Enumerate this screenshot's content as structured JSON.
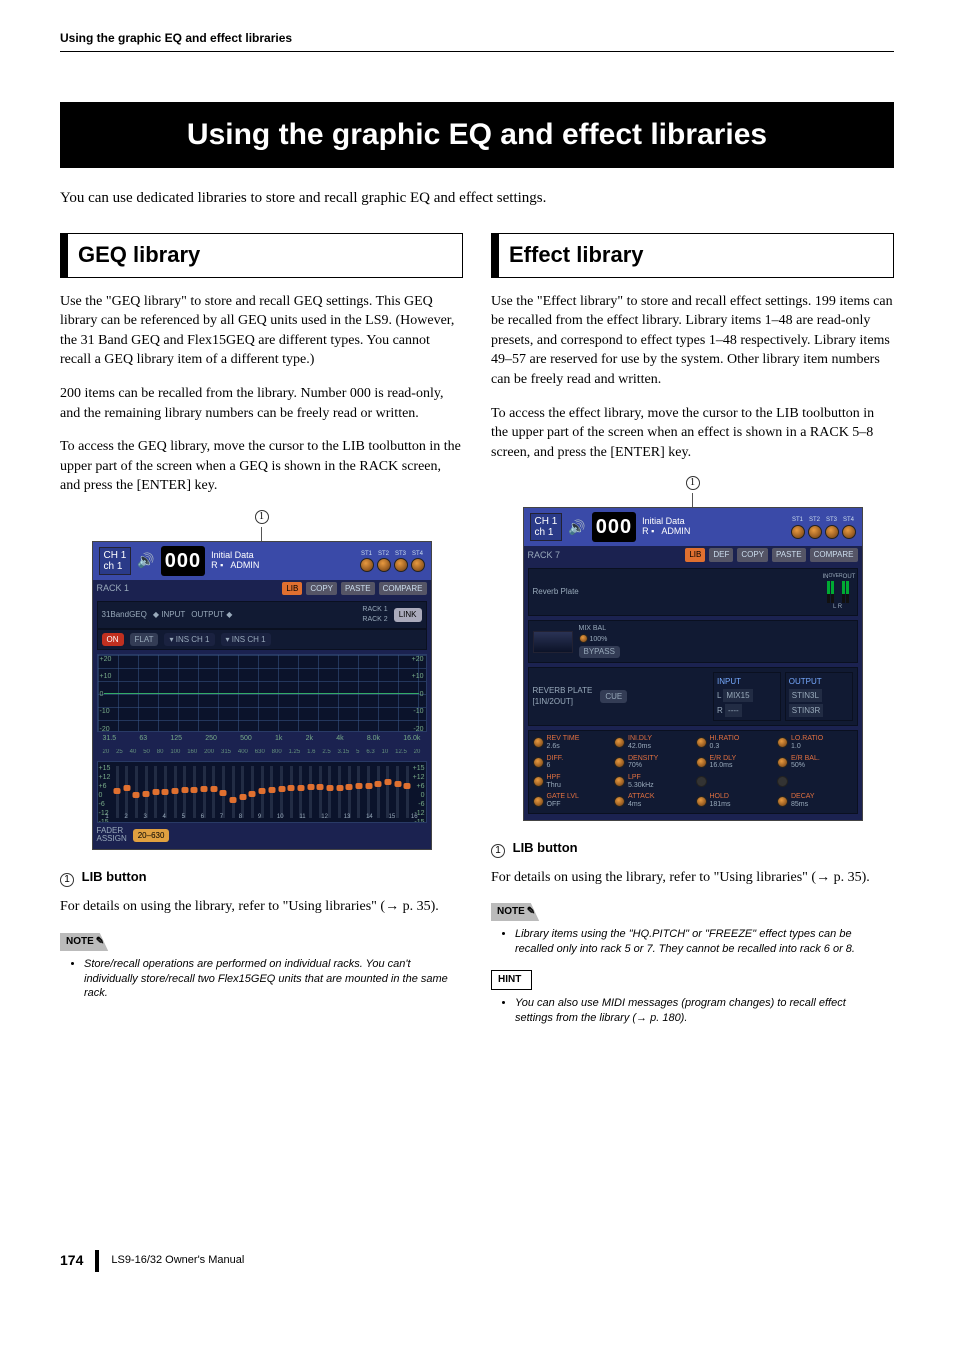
{
  "header": {
    "running_title": "Using the graphic EQ and effect libraries"
  },
  "main_title": "Using the graphic EQ and effect libraries",
  "intro": "You can use dedicated libraries to store and recall graphic EQ and effect settings.",
  "geq": {
    "title": "GEQ library",
    "p1": "Use the \"GEQ library\" to store and recall GEQ settings. This GEQ library can be referenced by all GEQ units used in the LS9. (However, the 31 Band GEQ and Flex15GEQ are different types. You cannot recall a GEQ library item of a different type.)",
    "p2": "200 items can be recalled from the library. Number 000 is read-only, and the remaining library numbers can be freely read or written.",
    "p3": "To access the GEQ library, move the cursor to the LIB toolbutton in the upper part of the screen when a GEQ is shown in the RACK screen, and press the [ENTER] key.",
    "callout_num": "1",
    "screenshot": {
      "ch_line1": "CH 1",
      "ch_line2": "ch 1",
      "digits": "000",
      "r_label": "R",
      "init_line1": "Initial Data",
      "init_line2": "ADMIN",
      "st_labels": [
        "ST1",
        "ST2",
        "ST3",
        "ST4"
      ],
      "rack_label": "RACK 1",
      "lib_btn": "LIB",
      "copy_btn": "COPY",
      "paste_btn": "PASTE",
      "compare_btn": "COMPARE",
      "mode": "31BandGEQ",
      "on": "ON",
      "flat": "FLAT",
      "input_lbl": "INPUT",
      "output_lbl": "OUTPUT",
      "ins_in": "INS CH 1",
      "ins_out": "INS CH 1",
      "rack_side": "RACK 1\nRACK 2",
      "link": "LINK",
      "y_ticks_left": [
        "+20",
        "+10",
        "0",
        "-10",
        "-20"
      ],
      "y_ticks_right": [
        "+20",
        "+10",
        "0",
        "-10",
        "-20"
      ],
      "freq_row1": [
        "31.5",
        "63",
        "125",
        "250",
        "500",
        "1k",
        "2k",
        "4k",
        "8.0k",
        "16.0k"
      ],
      "freq_row2": [
        "20",
        "25",
        "40",
        "50",
        "80",
        "100",
        "160",
        "200",
        "315",
        "400",
        "630",
        "800",
        "1.25",
        "1.6",
        "2.5",
        "3.15",
        "5",
        "6.3",
        "10",
        "12.5",
        "20"
      ],
      "slider_scale_left": [
        "+15",
        "+12",
        "+6",
        "0",
        "-6",
        "-12",
        "-15"
      ],
      "slider_nums": [
        "1",
        "2",
        "3",
        "4",
        "5",
        "6",
        "7",
        "8",
        "9",
        "10",
        "11",
        "12",
        "13",
        "14",
        "15",
        "16"
      ],
      "slider_positions_pct": [
        52,
        46,
        60,
        58,
        54,
        54,
        52,
        50,
        50,
        48,
        48,
        56,
        70,
        64,
        58,
        52,
        50,
        48,
        46,
        46,
        44,
        44,
        46,
        46,
        44,
        42,
        42,
        38,
        34,
        38,
        42
      ],
      "fader_assign": "FADER\nASSIGN",
      "range": "20–630"
    },
    "lib_heading_num": "1",
    "lib_heading_text": "LIB button",
    "p4a": "For details on using the library, refer to \"Using libraries\" (",
    "p4_arrow": "→",
    "p4b": " p. 35).",
    "note_label": "NOTE",
    "note_text": "Store/recall operations are performed on individual racks. You can't individually store/recall two Flex15GEQ units that are mounted in the same rack."
  },
  "fx": {
    "title": "Effect library",
    "p1": "Use the \"Effect library\" to store and recall effect settings. 199 items can be recalled from the effect library. Library items 1–48 are read-only presets, and correspond to effect types 1–48 respectively. Library items 49–57 are reserved for use by the system. Other library item numbers can be freely read and written.",
    "p2": "To access the effect library, move the cursor to the LIB toolbutton in the upper part of the screen when an effect is shown in a RACK 5–8 screen, and press the [ENTER] key.",
    "callout_num": "1",
    "screenshot": {
      "ch_line1": "CH 1",
      "ch_line2": "ch 1",
      "digits": "000",
      "r_label": "R",
      "init_line1": "Initial Data",
      "init_line2": "ADMIN",
      "st_labels": [
        "ST1",
        "ST2",
        "ST3",
        "ST4"
      ],
      "rack_label": "RACK 7",
      "lib_btn": "LIB",
      "def_btn": "DEF",
      "copy_btn": "COPY",
      "paste_btn": "PASTE",
      "compare_btn": "COMPARE",
      "fx_name": "Reverb Plate",
      "mixbal_lbl": "MIX BAL",
      "mixbal_val": "100%",
      "bypass": "BYPASS",
      "in_lbl": "IN",
      "out_lbl": "OUT",
      "over_lbl": "OVER",
      "meter_ticks": [
        "-6",
        "-12",
        "-18",
        "-30",
        "-60"
      ],
      "lr_lbl": "L R",
      "algo_line1": "REVERB PLATE",
      "algo_line2": "[1IN/2OUT]",
      "cue": "CUE",
      "input_lbl": "INPUT",
      "output_lbl": "OUTPUT",
      "in_l": "L",
      "in_r": "R",
      "in_l_val": "MIX15",
      "in_r_val": "----",
      "out_l_val": "STIN3L",
      "out_r_val": "STIN3R",
      "params": [
        {
          "name": "REV TIME",
          "val": "2.6s"
        },
        {
          "name": "INI.DLY",
          "val": "42.0ms"
        },
        {
          "name": "HI.RATIO",
          "val": "0.3"
        },
        {
          "name": "LO.RATIO",
          "val": "1.0"
        },
        {
          "name": "DIFF.",
          "val": "6"
        },
        {
          "name": "DENSITY",
          "val": "70%"
        },
        {
          "name": "E/R DLY",
          "val": "16.0ms"
        },
        {
          "name": "E/R BAL.",
          "val": "50%"
        },
        {
          "name": "HPF",
          "val": "Thru"
        },
        {
          "name": "LPF",
          "val": "5.30kHz"
        },
        {
          "name": "",
          "val": ""
        },
        {
          "name": "",
          "val": ""
        },
        {
          "name": "GATE LVL",
          "val": "OFF"
        },
        {
          "name": "ATTACK",
          "val": "4ms"
        },
        {
          "name": "HOLD",
          "val": "181ms"
        },
        {
          "name": "DECAY",
          "val": "85ms"
        }
      ]
    },
    "lib_heading_num": "1",
    "lib_heading_text": "LIB button",
    "p3a": "For details on using the library, refer to \"Using libraries\" (",
    "p3_arrow": "→",
    "p3b": " p. 35).",
    "note_label": "NOTE",
    "note_text": "Library items using the \"HQ.PITCH\" or \"FREEZE\" effect types can be recalled only into rack 5 or 7. They cannot be recalled into rack 6 or 8.",
    "hint_label": "HINT",
    "hint_text_a": "You can also use MIDI messages (program changes) to recall effect settings from the library (",
    "hint_arrow": "→",
    "hint_text_b": " p. 180)."
  },
  "footer": {
    "page": "174",
    "manual": "LS9-16/32  Owner's Manual"
  }
}
